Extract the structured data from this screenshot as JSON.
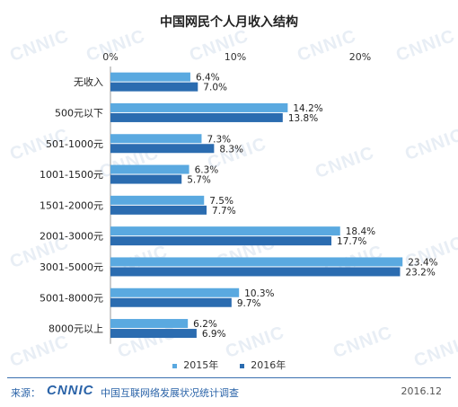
{
  "title": "中国网民个人月收入结构",
  "chart_data": {
    "type": "bar",
    "orientation": "horizontal",
    "categories": [
      "无收入",
      "500元以下",
      "501-1000元",
      "1001-1500元",
      "1501-2000元",
      "2001-3000元",
      "3001-5000元",
      "5001-8000元",
      "8000元以上"
    ],
    "series": [
      {
        "name": "2015年",
        "values": [
          6.4,
          14.2,
          7.3,
          6.3,
          7.5,
          18.4,
          23.4,
          10.3,
          6.2
        ],
        "color": "#5aa9e0"
      },
      {
        "name": "2016年",
        "values": [
          7.0,
          13.8,
          8.3,
          5.7,
          7.7,
          17.7,
          23.2,
          9.7,
          6.9
        ],
        "color": "#2b6cb0"
      }
    ],
    "xlim": [
      0,
      25
    ],
    "xticks": [
      "0%",
      "10%",
      "20%"
    ],
    "xtick_values": [
      0,
      10,
      20
    ],
    "value_suffix": "%",
    "legend_position": "bottom"
  },
  "footer": {
    "source_label": "来源：",
    "logo": "CNNIC",
    "source_name": "中国互联网络发展状况统计调查",
    "date": "2016.12"
  },
  "watermark": "CNNIC"
}
